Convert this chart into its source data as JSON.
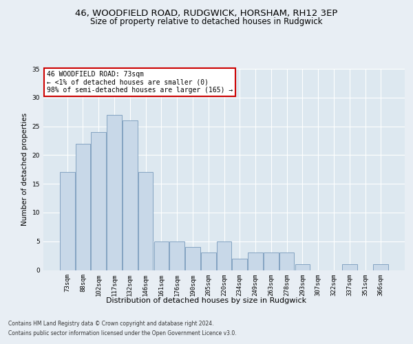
{
  "title1": "46, WOODFIELD ROAD, RUDGWICK, HORSHAM, RH12 3EP",
  "title2": "Size of property relative to detached houses in Rudgwick",
  "xlabel": "Distribution of detached houses by size in Rudgwick",
  "ylabel": "Number of detached properties",
  "footnote1": "Contains HM Land Registry data © Crown copyright and database right 2024.",
  "footnote2": "Contains public sector information licensed under the Open Government Licence v3.0.",
  "categories": [
    "73sqm",
    "88sqm",
    "102sqm",
    "117sqm",
    "132sqm",
    "146sqm",
    "161sqm",
    "176sqm",
    "190sqm",
    "205sqm",
    "220sqm",
    "234sqm",
    "249sqm",
    "263sqm",
    "278sqm",
    "293sqm",
    "307sqm",
    "322sqm",
    "337sqm",
    "351sqm",
    "366sqm"
  ],
  "values": [
    17,
    22,
    24,
    27,
    26,
    17,
    5,
    5,
    4,
    3,
    5,
    2,
    3,
    3,
    3,
    1,
    0,
    0,
    1,
    0,
    1
  ],
  "bar_color": "#c8d8e8",
  "bar_edge_color": "#7799bb",
  "annotation_title": "46 WOODFIELD ROAD: 73sqm",
  "annotation_line1": "← <1% of detached houses are smaller (0)",
  "annotation_line2": "98% of semi-detached houses are larger (165) →",
  "annotation_box_color": "#ffffff",
  "annotation_box_edge_color": "#cc0000",
  "ylim": [
    0,
    35
  ],
  "yticks": [
    0,
    5,
    10,
    15,
    20,
    25,
    30,
    35
  ],
  "bg_color": "#e8eef4",
  "plot_bg_color": "#dde8f0",
  "grid_color": "#ffffff",
  "title1_fontsize": 9.5,
  "title2_fontsize": 8.5,
  "xlabel_fontsize": 8,
  "ylabel_fontsize": 7.5,
  "tick_fontsize": 6.5,
  "annotation_fontsize": 7,
  "footnote_fontsize": 5.5
}
